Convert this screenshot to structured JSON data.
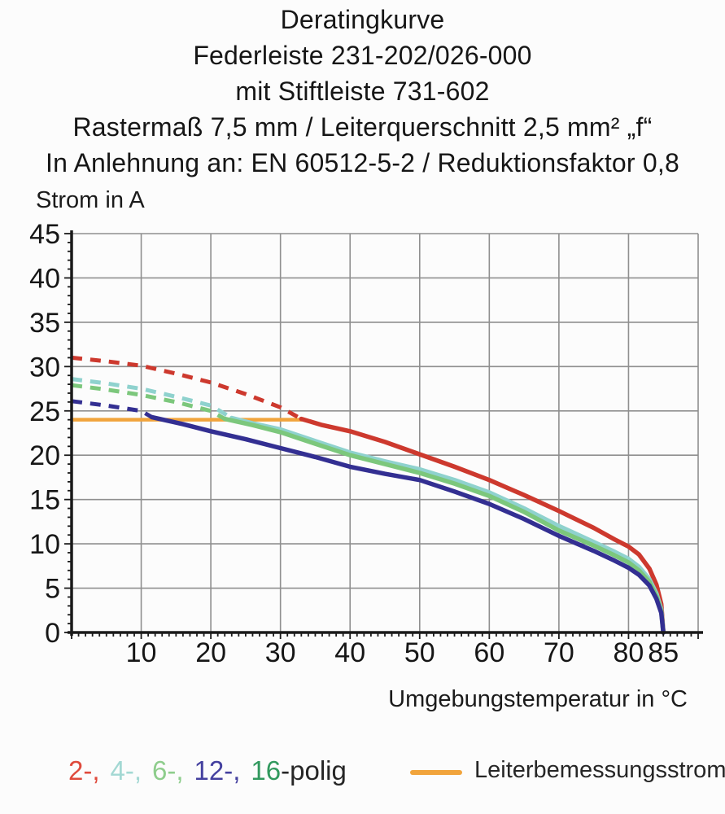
{
  "title": {
    "lines": [
      "Deratingkurve",
      "Federleiste 231-202/026-000",
      "mit Stiftleiste 731-602",
      "Rastermaß 7,5 mm / Leiterquerschnitt 2,5 mm² „f“",
      "In Anlehnung an: EN 60512-5-2 / Reduktionsfaktor 0,8"
    ]
  },
  "chart_data": {
    "type": "line",
    "title": "Deratingkurve Federleiste 231-202/026-000 mit Stiftleiste 731-602",
    "xlabel": "Umgebungstemperatur in °C",
    "ylabel": "Strom in A",
    "xlim": [
      0,
      90
    ],
    "ylim": [
      0,
      45
    ],
    "xticks": [
      10,
      20,
      30,
      40,
      50,
      60,
      70,
      80,
      85
    ],
    "yticks": [
      0,
      5,
      10,
      15,
      20,
      25,
      30,
      35,
      40,
      45
    ],
    "x_minor_step": 1,
    "y_minor_step": 1,
    "grid": {
      "show": true,
      "color": "#8f8f8f",
      "x_step": 10,
      "y_step": 5
    },
    "axis_color": "#1a1a1a",
    "rated_line": {
      "label": "Leiterbemessungsstrom",
      "value": 24,
      "x_start": 0,
      "x_end": 33,
      "color": "#f1a43c"
    },
    "series": [
      {
        "name": "2-polig",
        "color": "#cd392e",
        "dashed": [
          [
            0,
            31
          ],
          [
            5,
            30.6
          ],
          [
            10,
            30.1
          ],
          [
            15,
            29.2
          ],
          [
            20,
            28.2
          ],
          [
            25,
            26.9
          ],
          [
            30,
            25.4
          ],
          [
            33,
            24.1
          ]
        ],
        "solid": [
          [
            33,
            24.1
          ],
          [
            36,
            23.4
          ],
          [
            40,
            22.7
          ],
          [
            45,
            21.5
          ],
          [
            50,
            20.1
          ],
          [
            55,
            18.7
          ],
          [
            60,
            17.2
          ],
          [
            65,
            15.5
          ],
          [
            70,
            13.7
          ],
          [
            75,
            11.8
          ],
          [
            78,
            10.5
          ],
          [
            80,
            9.7
          ],
          [
            81.5,
            8.8
          ],
          [
            83,
            7.2
          ],
          [
            84,
            5.4
          ],
          [
            84.7,
            3.2
          ],
          [
            85,
            0
          ]
        ]
      },
      {
        "name": "4-polig",
        "color": "#8fd2ce",
        "dashed": [
          [
            0,
            28.6
          ],
          [
            5,
            28.1
          ],
          [
            10,
            27.5
          ],
          [
            15,
            26.6
          ],
          [
            20,
            25.6
          ],
          [
            23,
            24.2
          ]
        ],
        "solid": [
          [
            23,
            24.2
          ],
          [
            26,
            23.6
          ],
          [
            30,
            22.9
          ],
          [
            35,
            21.6
          ],
          [
            40,
            20.3
          ],
          [
            45,
            19.3
          ],
          [
            50,
            18.4
          ],
          [
            55,
            17.2
          ],
          [
            60,
            15.8
          ],
          [
            65,
            14.0
          ],
          [
            70,
            12.0
          ],
          [
            75,
            10.2
          ],
          [
            78,
            9.1
          ],
          [
            80,
            8.3
          ],
          [
            81.5,
            7.4
          ],
          [
            83,
            6.0
          ],
          [
            84,
            4.4
          ],
          [
            84.7,
            2.6
          ],
          [
            85,
            0
          ]
        ]
      },
      {
        "name": "6-polig",
        "color": "#7cc77c",
        "dashed": [
          [
            0,
            27.9
          ],
          [
            5,
            27.4
          ],
          [
            10,
            26.8
          ],
          [
            15,
            26.0
          ],
          [
            20,
            25.0
          ],
          [
            22,
            24.1
          ]
        ],
        "solid": [
          [
            22,
            24.1
          ],
          [
            26,
            23.4
          ],
          [
            30,
            22.6
          ],
          [
            35,
            21.3
          ],
          [
            40,
            20.0
          ],
          [
            45,
            19.0
          ],
          [
            50,
            18.0
          ],
          [
            55,
            16.8
          ],
          [
            60,
            15.4
          ],
          [
            65,
            13.6
          ],
          [
            70,
            11.5
          ],
          [
            75,
            9.8
          ],
          [
            78,
            8.7
          ],
          [
            80,
            7.9
          ],
          [
            81.5,
            7.0
          ],
          [
            83,
            5.7
          ],
          [
            84,
            4.1
          ],
          [
            84.7,
            2.4
          ],
          [
            85,
            0
          ]
        ]
      },
      {
        "name": "12-polig",
        "color": "#332f92",
        "dashed": [
          [
            0,
            26.1
          ],
          [
            5,
            25.6
          ],
          [
            10,
            25.0
          ],
          [
            11.5,
            24.3
          ]
        ],
        "solid": [
          [
            11.5,
            24.3
          ],
          [
            16,
            23.5
          ],
          [
            20,
            22.7
          ],
          [
            25,
            21.8
          ],
          [
            30,
            20.8
          ],
          [
            35,
            19.8
          ],
          [
            40,
            18.7
          ],
          [
            45,
            17.9
          ],
          [
            50,
            17.2
          ],
          [
            55,
            15.9
          ],
          [
            60,
            14.5
          ],
          [
            65,
            12.8
          ],
          [
            70,
            10.9
          ],
          [
            75,
            9.2
          ],
          [
            78,
            8.1
          ],
          [
            80,
            7.3
          ],
          [
            81.5,
            6.5
          ],
          [
            83,
            5.3
          ],
          [
            84,
            3.8
          ],
          [
            84.7,
            2.2
          ],
          [
            85,
            0
          ]
        ]
      }
    ]
  },
  "legend": {
    "pole_segments": [
      {
        "text": "2-,",
        "color": "#df4a3c"
      },
      {
        "text": "4-,",
        "color": "#a3d8d3"
      },
      {
        "text": "6-,",
        "color": "#8ecd8c"
      },
      {
        "text": "12-,",
        "color": "#44409f"
      },
      {
        "text": "16",
        "color": "#31995e"
      },
      {
        "text": "-polig",
        "color": "#262626"
      }
    ],
    "rated_label": "Leiterbemessungsstrom"
  }
}
